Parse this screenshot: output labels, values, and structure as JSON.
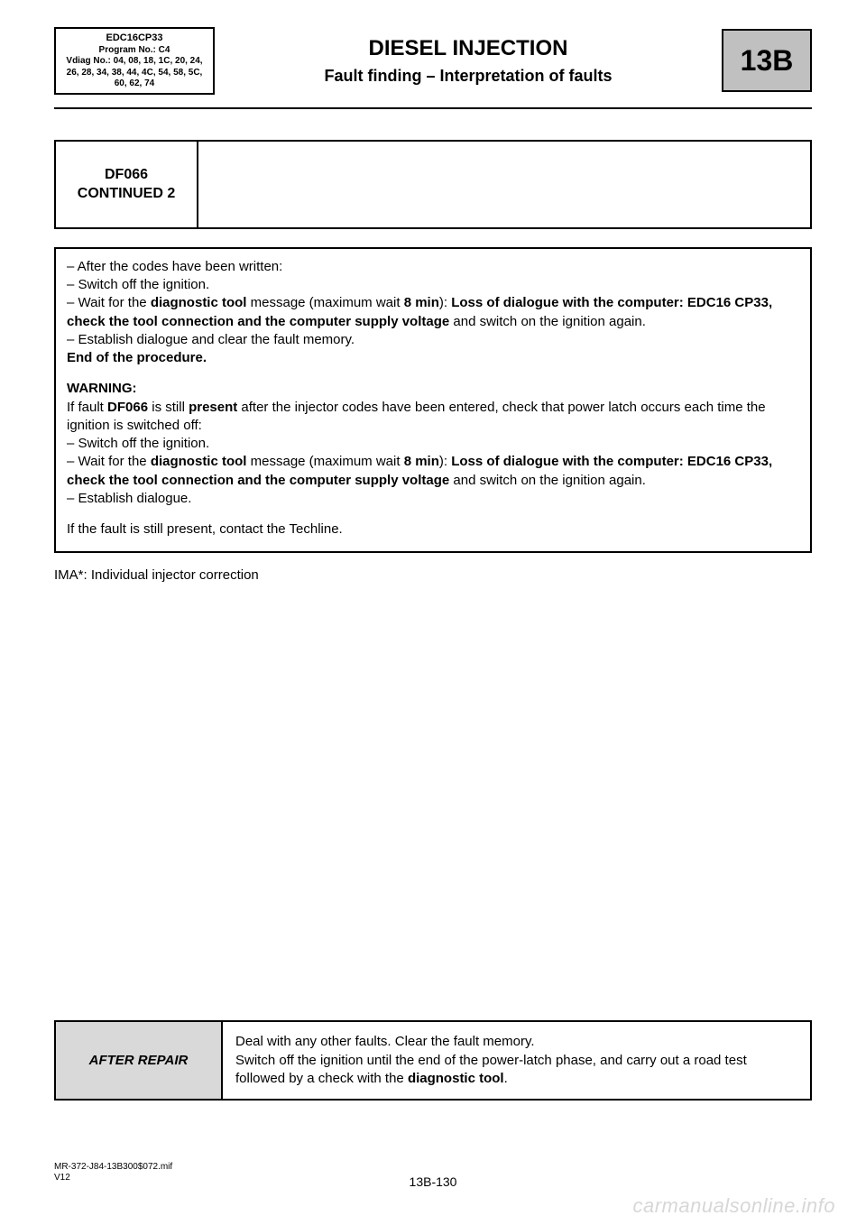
{
  "colors": {
    "section_bg": "#c0c0c0",
    "after_repair_bg": "#d9d9d9",
    "watermark": "#d7d7d7",
    "text": "#000000",
    "page_bg": "#ffffff"
  },
  "header": {
    "ecu": {
      "line1": "EDC16CP33",
      "line2": "Program No.: C4",
      "line3": "Vdiag No.: 04, 08, 18, 1C, 20, 24, 26, 28, 34, 38, 44, 4C, 54, 58, 5C, 60, 62, 74"
    },
    "title": "DIESEL INJECTION",
    "subtitle": "Fault finding – Interpretation of faults",
    "section_code": "13B"
  },
  "fault": {
    "code": "DF066",
    "continued": "CONTINUED 2"
  },
  "instructions": {
    "l1": "– After the codes have been written:",
    "l2": "– Switch off the ignition.",
    "l3a": "– Wait for the ",
    "l3b": "diagnostic tool",
    "l3c": " message (maximum wait ",
    "l3d": "8 min",
    "l3e": "): ",
    "l3f": "Loss of dialogue with the computer: EDC16 CP33, check the tool connection and the computer supply voltage",
    "l3g": " and switch on the ignition again.",
    "l4": "– Establish dialogue and clear the fault memory.",
    "l5": "End of the procedure.",
    "w_title": "WARNING:",
    "w1a": "If fault ",
    "w1b": "DF066",
    "w1c": " is still ",
    "w1d": "present",
    "w1e": " after the injector codes have been entered, check that power latch occurs each time the ignition is switched off:",
    "w2": "– Switch off the ignition.",
    "w3a": "– Wait for the ",
    "w3b": "diagnostic tool",
    "w3c": " message (maximum wait ",
    "w3d": "8 min",
    "w3e": "): ",
    "w3f": "Loss of dialogue with the computer: EDC16 CP33, check the tool connection and the computer supply voltage",
    "w3g": " and switch on the ignition again.",
    "w4": "– Establish dialogue.",
    "w5": "If the fault is still present, contact the Techline."
  },
  "footnote": "IMA*: Individual injector correction",
  "after_repair": {
    "label": "AFTER REPAIR",
    "t1": "Deal with any other faults. Clear the fault memory.",
    "t2a": "Switch off the ignition until the end of the power-latch phase, and carry out a road test followed by a check with the ",
    "t2b": "diagnostic tool",
    "t2c": "."
  },
  "doc_ref": {
    "l1": "MR-372-J84-13B300$072.mif",
    "l2": "V12"
  },
  "page_number": "13B-130",
  "watermark": "carmanualsonline.info"
}
